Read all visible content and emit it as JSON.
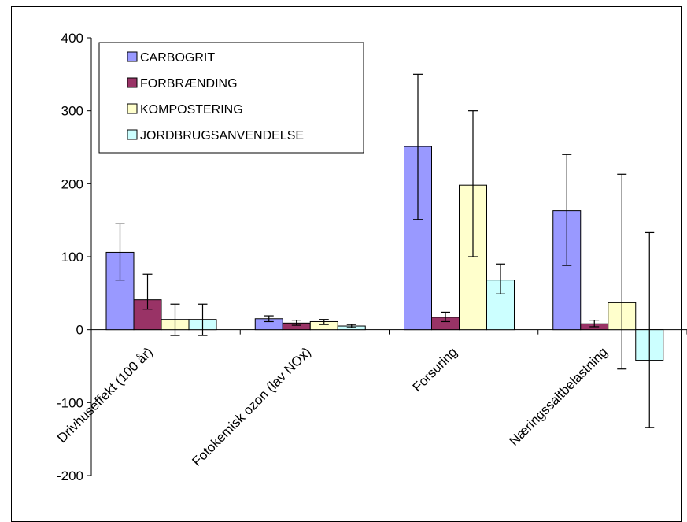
{
  "chart_data": {
    "type": "bar",
    "title": "",
    "xlabel": "",
    "ylabel": "",
    "ylim": [
      -200,
      400
    ],
    "yticks": [
      400,
      300,
      200,
      100,
      0,
      -100,
      -200
    ],
    "grid": false,
    "legend_position": "top-left",
    "categories": [
      "Drivhuseffekt (100 år)",
      "Fotokemisk ozon (lav NOx)",
      "Forsuring",
      "Næringssaltbelastning"
    ],
    "series": [
      {
        "name": "CARBOGRIT",
        "color": "#9999FF",
        "values": [
          106,
          15,
          251,
          163
        ],
        "error_low": [
          68,
          11,
          151,
          88
        ],
        "error_high": [
          145,
          19,
          350,
          240
        ]
      },
      {
        "name": "FORBRÆNDING",
        "color": "#993366",
        "values": [
          41,
          9,
          17,
          8
        ],
        "error_low": [
          28,
          6,
          11,
          4
        ],
        "error_high": [
          76,
          13,
          24,
          13
        ]
      },
      {
        "name": "KOMPOSTERING",
        "color": "#FFFFCC",
        "values": [
          14,
          11,
          198,
          37
        ],
        "error_low": [
          -8,
          7,
          100,
          -54
        ],
        "error_high": [
          35,
          14,
          300,
          213
        ]
      },
      {
        "name": "JORDBRUGSANVENDELSE",
        "color": "#CCFFFF",
        "values": [
          14,
          5,
          68,
          -42
        ],
        "error_low": [
          -8,
          3,
          49,
          -134
        ],
        "error_high": [
          35,
          7,
          90,
          133
        ]
      }
    ]
  }
}
